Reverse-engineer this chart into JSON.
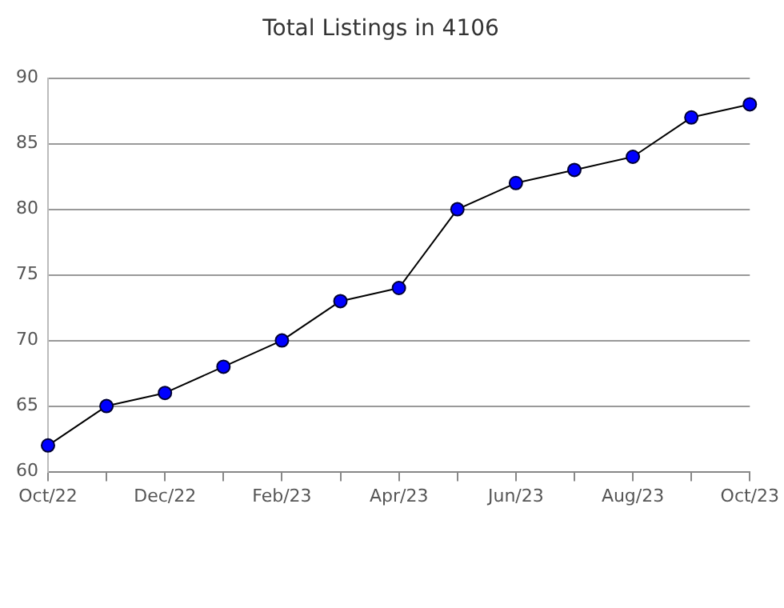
{
  "chart_data": {
    "type": "line",
    "title": "Total Listings in 4106",
    "categories": [
      "Oct/22",
      null,
      "Dec/22",
      null,
      "Feb/23",
      null,
      "Apr/23",
      null,
      "Jun/23",
      null,
      "Aug/23",
      null,
      "Oct/23"
    ],
    "series": [
      {
        "color": "#0000ff",
        "values": [
          62,
          65,
          66,
          68,
          70,
          73,
          74,
          80,
          82,
          83,
          84,
          87,
          88
        ]
      }
    ],
    "ylim": [
      60,
      90
    ],
    "yticks": [
      60,
      65,
      70,
      75,
      80,
      85,
      90
    ],
    "grid": "y",
    "legend": false,
    "marker": "circle",
    "line_style": "solid"
  }
}
